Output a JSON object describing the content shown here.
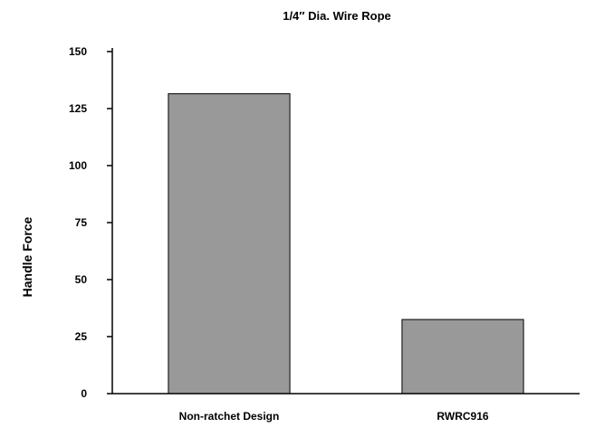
{
  "chart_data": {
    "type": "bar",
    "title": "1/4″ Dia. Wire Rope",
    "xlabel": "",
    "ylabel": "Handle Force",
    "categories": [
      "Non-ratchet Design",
      "RWRC916"
    ],
    "values": [
      131.5,
      32.5
    ],
    "ylim": [
      0,
      150
    ],
    "yticks": [
      0,
      25,
      50,
      75,
      100,
      125,
      150
    ],
    "grid": false,
    "legend": "none",
    "colors": {
      "bar_fill": "#999999",
      "bar_stroke": "#000000",
      "axis": "#000000",
      "background": "#ffffff"
    }
  }
}
